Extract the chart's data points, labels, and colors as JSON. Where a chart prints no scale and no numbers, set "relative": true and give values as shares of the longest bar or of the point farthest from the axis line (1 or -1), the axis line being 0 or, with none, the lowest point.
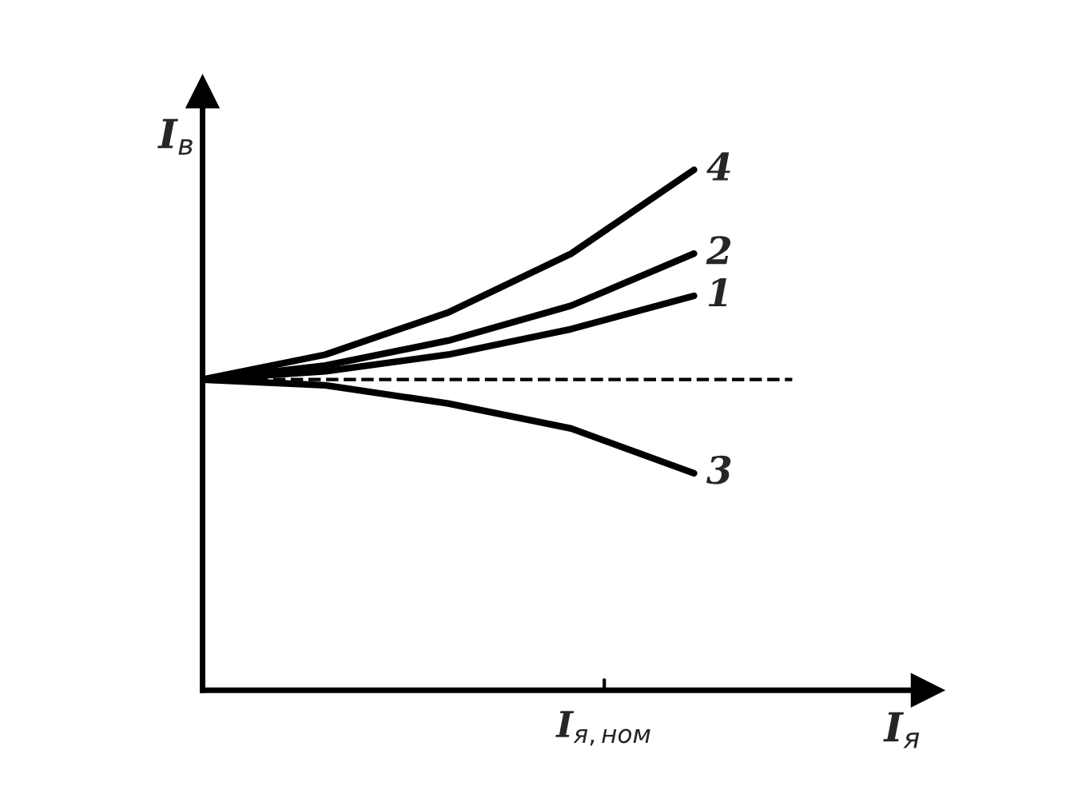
{
  "chart_data": {
    "type": "line",
    "relative": true,
    "xlabel": "I$_{я}$",
    "ylabel": "I$_{в}$",
    "categories": [
      null,
      null,
      null,
      null,
      null
    ],
    "series": [
      {
        "name": "4",
        "color": "#000000",
        "values": [
          0.597,
          0.645,
          0.726,
          0.839,
          1.0
        ]
      },
      {
        "name": "2",
        "color": "#000000",
        "values": [
          0.597,
          0.624,
          0.672,
          0.739,
          0.839
        ]
      },
      {
        "name": "1",
        "color": "#000000",
        "values": [
          0.597,
          0.613,
          0.645,
          0.694,
          0.758
        ]
      },
      {
        "name": "3",
        "color": "#000000",
        "values": [
          0.597,
          0.586,
          0.551,
          0.503,
          0.417
        ]
      }
    ],
    "ref_lines": [
      {
        "axis": "y",
        "value": 0.597,
        "color": "#000000",
        "line_style": "dashed"
      }
    ],
    "annotations": [
      "I$_{я,ном}$"
    ],
    "legend": false,
    "marker": "none",
    "line_style": "solid"
  }
}
